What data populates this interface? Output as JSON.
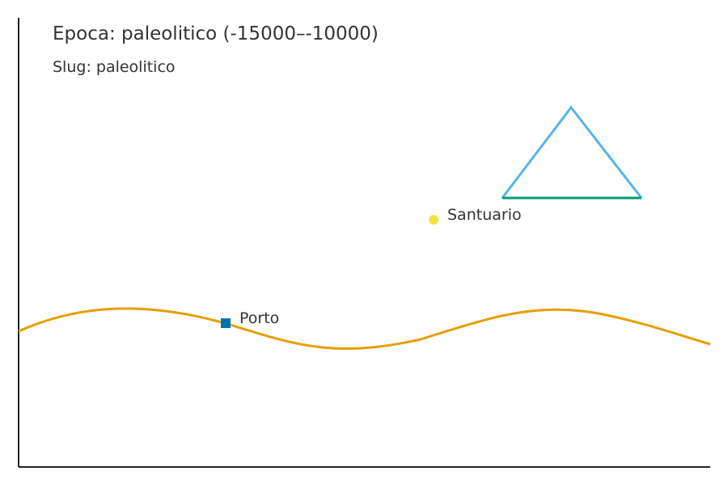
{
  "header": {
    "title": "Epoca: paleolitico (-15000–-10000)",
    "subtitle": "Slug: paleolitico"
  },
  "places": [
    {
      "name": "Porto",
      "marker": "square-marker",
      "color": "#0072b2"
    },
    {
      "name": "Santuario",
      "marker": "circle-marker",
      "color": "#f0e442"
    }
  ],
  "features": {
    "river_color": "#e69f00",
    "mountain_outline_color": "#56b4e9",
    "mountain_base_color": "#009e73",
    "axis_color": "#222222"
  }
}
